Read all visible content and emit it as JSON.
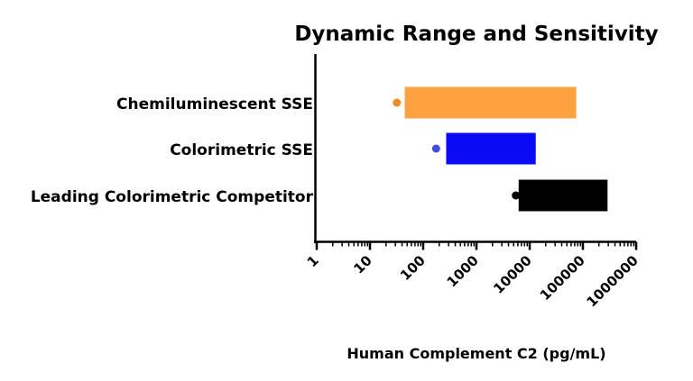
{
  "chart_data": {
    "type": "bar",
    "orientation": "horizontal",
    "title": "Dynamic Range and Sensitivity",
    "xlabel": "Human Complement C2 (pg/mL)",
    "ylabel": "",
    "xscale": "log",
    "xlim": [
      1,
      1000000
    ],
    "x_ticks": [
      "1",
      "10",
      "100",
      "1000",
      "10000",
      "100000",
      "1000000"
    ],
    "grid": false,
    "legend": "none",
    "categories": [
      "Chemiluminescent SSE",
      "Colorimetric SSE",
      "Leading Colorimetric Competitor"
    ],
    "series": [
      {
        "ranges": [
          {
            "category": "Chemiluminescent SSE",
            "low": 45,
            "high": 75000,
            "color": "#FFA140"
          },
          {
            "category": "Colorimetric SSE",
            "low": 270,
            "high": 13000,
            "color": "#0A0AF5"
          },
          {
            "category": "Leading Colorimetric Competitor",
            "low": 6200,
            "high": 290000,
            "color": "#000000"
          }
        ]
      },
      {
        "points": [
          {
            "category": "Chemiluminescent SSE",
            "x": 32,
            "color": "#F08A24"
          },
          {
            "category": "Colorimetric SSE",
            "x": 175,
            "color": "#3F4FE0"
          },
          {
            "category": "Leading Colorimetric Competitor",
            "x": 5500,
            "color": "#000000"
          }
        ]
      }
    ]
  }
}
